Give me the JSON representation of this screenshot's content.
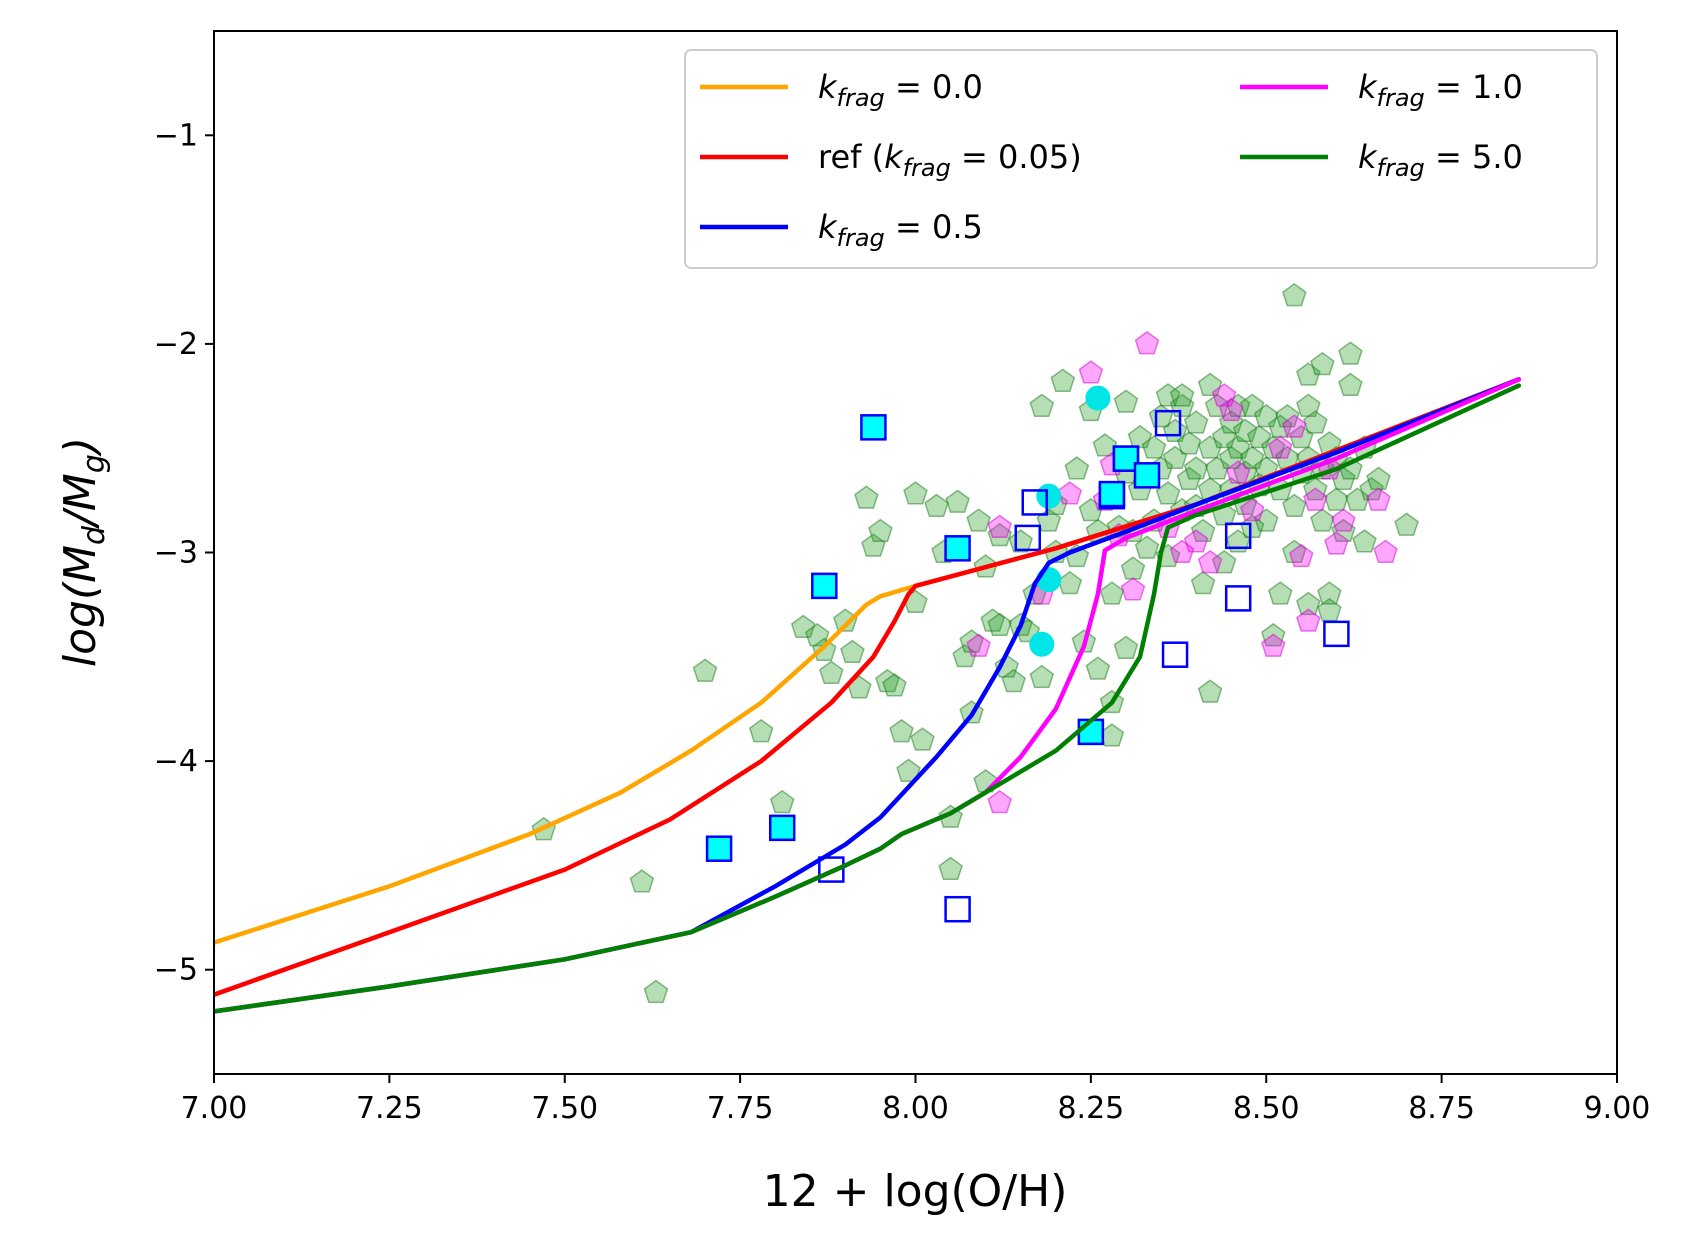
{
  "chart_data": {
    "type": "line",
    "title": "",
    "xlabel": "12 + log(O/H)",
    "ylabel": "log(M_d/M_g)",
    "ylabel_parts": {
      "pre": "log(M",
      "sub1": "d",
      "mid": "/M",
      "sub2": "g",
      "post": ")"
    },
    "xlim": [
      7.0,
      9.0
    ],
    "ylim": [
      -5.5,
      -0.5
    ],
    "xticks": [
      7.0,
      7.25,
      7.5,
      7.75,
      8.0,
      8.25,
      8.5,
      8.75,
      9.0
    ],
    "xtick_labels": [
      "7.00",
      "7.25",
      "7.50",
      "7.75",
      "8.00",
      "8.25",
      "8.50",
      "8.75",
      "9.00"
    ],
    "yticks": [
      -5,
      -4,
      -3,
      -2,
      -1
    ],
    "ytick_labels": [
      "−5",
      "−4",
      "−3",
      "−2",
      "−1"
    ],
    "grid": false,
    "legend_position": "top-right",
    "series": [
      {
        "name": "kfrag = 0.0",
        "legend_label": {
          "pre": "k",
          "sub": "frag",
          "post": " =  0.0"
        },
        "color": "#ffa500",
        "x": [
          7.0,
          7.25,
          7.45,
          7.58,
          7.68,
          7.78,
          7.87,
          7.93,
          7.95,
          8.0,
          8.2,
          8.4,
          8.6,
          8.86
        ],
        "y": [
          -4.87,
          -4.6,
          -4.35,
          -4.15,
          -3.95,
          -3.72,
          -3.45,
          -3.25,
          -3.21,
          -3.16,
          -2.98,
          -2.77,
          -2.51,
          -2.17
        ]
      },
      {
        "name": "ref (kfrag = 0.05)",
        "legend_label": {
          "pre": "ref (k",
          "sub": "frag",
          "post": " =  0.05)"
        },
        "color": "#ff0000",
        "x": [
          7.0,
          7.25,
          7.5,
          7.65,
          7.78,
          7.88,
          7.94,
          7.97,
          7.99,
          8.0,
          8.2,
          8.4,
          8.6,
          8.86
        ],
        "y": [
          -5.12,
          -4.82,
          -4.52,
          -4.28,
          -4.0,
          -3.72,
          -3.5,
          -3.33,
          -3.2,
          -3.16,
          -2.98,
          -2.77,
          -2.51,
          -2.17
        ]
      },
      {
        "name": "kfrag = 0.5",
        "legend_label": {
          "pre": "k",
          "sub": "frag",
          "post": " =  0.5"
        },
        "color": "#0000ff",
        "x": [
          7.0,
          7.25,
          7.5,
          7.68,
          7.8,
          7.9,
          7.95,
          8.03,
          8.08,
          8.12,
          8.15,
          8.17,
          8.19,
          8.22,
          8.3,
          8.4,
          8.6,
          8.86
        ],
        "y": [
          -5.2,
          -5.08,
          -4.95,
          -4.82,
          -4.6,
          -4.4,
          -4.27,
          -3.98,
          -3.78,
          -3.55,
          -3.35,
          -3.15,
          -3.05,
          -3.0,
          -2.9,
          -2.77,
          -2.52,
          -2.17
        ]
      },
      {
        "name": "kfrag = 1.0",
        "legend_label": {
          "pre": "k",
          "sub": "frag",
          "post": " =  1.0"
        },
        "color": "#ff00ff",
        "x": [
          7.0,
          7.25,
          7.5,
          7.68,
          7.8,
          7.9,
          7.95,
          7.98,
          8.05,
          8.1,
          8.15,
          8.2,
          8.24,
          8.26,
          8.27,
          8.3,
          8.4,
          8.6,
          8.86
        ],
        "y": [
          -5.2,
          -5.08,
          -4.95,
          -4.82,
          -4.65,
          -4.5,
          -4.42,
          -4.35,
          -4.25,
          -4.15,
          -3.98,
          -3.75,
          -3.45,
          -3.2,
          -2.99,
          -2.93,
          -2.8,
          -2.55,
          -2.17
        ]
      },
      {
        "name": "kfrag = 5.0",
        "legend_label": {
          "pre": "k",
          "sub": "frag",
          "post": " =  5.0"
        },
        "color": "#008000",
        "x": [
          7.0,
          7.25,
          7.5,
          7.68,
          7.8,
          7.9,
          7.95,
          7.98,
          8.05,
          8.1,
          8.2,
          8.28,
          8.32,
          8.34,
          8.35,
          8.36,
          8.4,
          8.6,
          8.86
        ],
        "y": [
          -5.2,
          -5.08,
          -4.95,
          -4.82,
          -4.65,
          -4.5,
          -4.42,
          -4.35,
          -4.25,
          -4.15,
          -3.95,
          -3.72,
          -3.5,
          -3.2,
          -3.0,
          -2.88,
          -2.82,
          -2.6,
          -2.2
        ]
      }
    ],
    "scatter_sets": [
      {
        "name": "green-pentagons",
        "marker": "pentagon",
        "fill": "#2ca02c",
        "stroke": "#1a7a1a",
        "opacity": 0.35,
        "points": [
          [
            7.47,
            -4.33
          ],
          [
            7.63,
            -5.11
          ],
          [
            7.61,
            -4.58
          ],
          [
            7.7,
            -3.57
          ],
          [
            7.78,
            -3.86
          ],
          [
            7.81,
            -4.2
          ],
          [
            7.84,
            -3.36
          ],
          [
            7.86,
            -3.4
          ],
          [
            7.87,
            -3.47
          ],
          [
            7.88,
            -3.58
          ],
          [
            7.9,
            -3.33
          ],
          [
            7.91,
            -3.48
          ],
          [
            7.92,
            -3.65
          ],
          [
            7.93,
            -2.74
          ],
          [
            7.94,
            -2.97
          ],
          [
            7.95,
            -2.9
          ],
          [
            7.96,
            -3.62
          ],
          [
            7.97,
            -3.64
          ],
          [
            7.98,
            -3.86
          ],
          [
            7.99,
            -4.05
          ],
          [
            8.0,
            -2.72
          ],
          [
            8.0,
            -3.24
          ],
          [
            8.01,
            -3.9
          ],
          [
            8.03,
            -2.78
          ],
          [
            8.04,
            -3.0
          ],
          [
            8.05,
            -4.27
          ],
          [
            8.05,
            -4.52
          ],
          [
            8.06,
            -2.76
          ],
          [
            8.07,
            -3.5
          ],
          [
            8.08,
            -3.43
          ],
          [
            8.08,
            -3.77
          ],
          [
            8.09,
            -2.85
          ],
          [
            8.1,
            -3.07
          ],
          [
            8.1,
            -4.1
          ],
          [
            8.11,
            -3.33
          ],
          [
            8.12,
            -3.35
          ],
          [
            8.12,
            -2.92
          ],
          [
            8.13,
            -3.55
          ],
          [
            8.14,
            -3.62
          ],
          [
            8.15,
            -3.35
          ],
          [
            8.15,
            -2.95
          ],
          [
            8.16,
            -3.38
          ],
          [
            8.17,
            -3.2
          ],
          [
            8.18,
            -3.6
          ],
          [
            8.18,
            -2.3
          ],
          [
            8.19,
            -2.85
          ],
          [
            8.2,
            -2.77
          ],
          [
            8.2,
            -3.0
          ],
          [
            8.21,
            -2.18
          ],
          [
            8.22,
            -3.15
          ],
          [
            8.23,
            -3.02
          ],
          [
            8.23,
            -2.6
          ],
          [
            8.24,
            -3.43
          ],
          [
            8.25,
            -2.32
          ],
          [
            8.25,
            -2.8
          ],
          [
            8.26,
            -2.9
          ],
          [
            8.26,
            -3.56
          ],
          [
            8.27,
            -2.49
          ],
          [
            8.28,
            -2.72
          ],
          [
            8.28,
            -3.2
          ],
          [
            8.28,
            -3.72
          ],
          [
            8.28,
            -3.88
          ],
          [
            8.29,
            -2.88
          ],
          [
            8.3,
            -2.28
          ],
          [
            8.3,
            -2.62
          ],
          [
            8.3,
            -3.46
          ],
          [
            8.31,
            -2.9
          ],
          [
            8.31,
            -3.08
          ],
          [
            8.32,
            -2.45
          ],
          [
            8.32,
            -2.7
          ],
          [
            8.33,
            -2.98
          ],
          [
            8.34,
            -2.5
          ],
          [
            8.34,
            -2.85
          ],
          [
            8.35,
            -2.35
          ],
          [
            8.35,
            -2.6
          ],
          [
            8.36,
            -2.25
          ],
          [
            8.36,
            -2.72
          ],
          [
            8.36,
            -3.02
          ],
          [
            8.37,
            -2.42
          ],
          [
            8.37,
            -2.55
          ],
          [
            8.38,
            -2.8
          ],
          [
            8.38,
            -2.3
          ],
          [
            8.39,
            -2.65
          ],
          [
            8.39,
            -2.48
          ],
          [
            8.4,
            -2.38
          ],
          [
            8.4,
            -2.6
          ],
          [
            8.4,
            -2.78
          ],
          [
            8.41,
            -2.9
          ],
          [
            8.41,
            -3.15
          ],
          [
            8.42,
            -2.5
          ],
          [
            8.42,
            -2.7
          ],
          [
            8.42,
            -3.67
          ],
          [
            8.43,
            -2.3
          ],
          [
            8.43,
            -2.6
          ],
          [
            8.44,
            -2.45
          ],
          [
            8.44,
            -2.82
          ],
          [
            8.44,
            -3.05
          ],
          [
            8.45,
            -2.38
          ],
          [
            8.45,
            -2.55
          ],
          [
            8.45,
            -2.7
          ],
          [
            8.46,
            -2.3
          ],
          [
            8.46,
            -2.5
          ],
          [
            8.46,
            -2.95
          ],
          [
            8.47,
            -2.42
          ],
          [
            8.47,
            -2.62
          ],
          [
            8.47,
            -2.77
          ],
          [
            8.48,
            -2.3
          ],
          [
            8.48,
            -2.55
          ],
          [
            8.48,
            -2.88
          ],
          [
            8.49,
            -2.45
          ],
          [
            8.49,
            -2.68
          ],
          [
            8.5,
            -2.35
          ],
          [
            8.5,
            -2.6
          ],
          [
            8.5,
            -2.85
          ],
          [
            8.51,
            -3.4
          ],
          [
            8.51,
            -2.5
          ],
          [
            8.52,
            -2.4
          ],
          [
            8.52,
            -2.7
          ],
          [
            8.52,
            -3.2
          ],
          [
            8.53,
            -2.55
          ],
          [
            8.53,
            -2.35
          ],
          [
            8.54,
            -1.77
          ],
          [
            8.54,
            -2.78
          ],
          [
            8.54,
            -3.0
          ],
          [
            8.55,
            -2.45
          ],
          [
            8.55,
            -2.62
          ],
          [
            8.56,
            -2.3
          ],
          [
            8.56,
            -2.55
          ],
          [
            8.56,
            -3.25
          ],
          [
            8.57,
            -2.7
          ],
          [
            8.57,
            -2.38
          ],
          [
            8.58,
            -2.6
          ],
          [
            8.58,
            -2.85
          ],
          [
            8.59,
            -2.48
          ],
          [
            8.59,
            -3.2
          ],
          [
            8.59,
            -3.28
          ],
          [
            8.6,
            -2.55
          ],
          [
            8.6,
            -2.75
          ],
          [
            8.61,
            -2.65
          ],
          [
            8.61,
            -2.9
          ],
          [
            8.62,
            -2.2
          ],
          [
            8.62,
            -2.6
          ],
          [
            8.63,
            -2.75
          ],
          [
            8.64,
            -2.5
          ],
          [
            8.64,
            -2.95
          ],
          [
            8.65,
            -2.7
          ],
          [
            8.66,
            -2.65
          ],
          [
            8.7,
            -2.87
          ],
          [
            8.56,
            -2.15
          ],
          [
            8.58,
            -2.1
          ],
          [
            8.62,
            -2.05
          ],
          [
            8.42,
            -2.2
          ],
          [
            8.38,
            -2.25
          ]
        ]
      },
      {
        "name": "magenta-pentagons",
        "marker": "pentagon",
        "fill": "#ff00ff",
        "stroke": "#d000d0",
        "opacity": 0.35,
        "points": [
          [
            8.09,
            -3.45
          ],
          [
            8.12,
            -4.2
          ],
          [
            8.12,
            -2.88
          ],
          [
            8.18,
            -3.2
          ],
          [
            8.22,
            -2.72
          ],
          [
            8.25,
            -2.14
          ],
          [
            8.27,
            -2.75
          ],
          [
            8.28,
            -2.58
          ],
          [
            8.29,
            -2.92
          ],
          [
            8.31,
            -3.18
          ],
          [
            8.33,
            -2.0
          ],
          [
            8.38,
            -3.0
          ],
          [
            8.42,
            -3.05
          ],
          [
            8.44,
            -2.25
          ],
          [
            8.45,
            -2.32
          ],
          [
            8.46,
            -2.62
          ],
          [
            8.48,
            -2.8
          ],
          [
            8.51,
            -3.45
          ],
          [
            8.52,
            -2.5
          ],
          [
            8.54,
            -2.4
          ],
          [
            8.55,
            -3.02
          ],
          [
            8.56,
            -3.33
          ],
          [
            8.57,
            -2.75
          ],
          [
            8.59,
            -2.6
          ],
          [
            8.6,
            -2.96
          ],
          [
            8.61,
            -2.85
          ],
          [
            8.66,
            -2.75
          ],
          [
            8.67,
            -3.0
          ],
          [
            8.36,
            -2.88
          ],
          [
            8.4,
            -2.95
          ]
        ]
      },
      {
        "name": "cyan-circles",
        "marker": "circle",
        "fill": "#00e5e5",
        "stroke": "#00e5e5",
        "opacity": 1,
        "points": [
          [
            8.26,
            -2.26
          ],
          [
            8.19,
            -2.73
          ],
          [
            8.18,
            -3.44
          ],
          [
            8.19,
            -3.13
          ]
        ]
      },
      {
        "name": "blue-open-squares",
        "marker": "square-open",
        "fill": "none",
        "stroke": "#0000ff",
        "opacity": 1,
        "points": [
          [
            7.88,
            -4.52
          ],
          [
            8.06,
            -4.71
          ],
          [
            8.16,
            -2.93
          ],
          [
            8.17,
            -2.76
          ],
          [
            8.36,
            -2.38
          ],
          [
            8.37,
            -3.49
          ],
          [
            8.46,
            -2.92
          ],
          [
            8.46,
            -3.22
          ],
          [
            8.6,
            -3.39
          ],
          [
            8.28,
            -2.73
          ],
          [
            8.3,
            -2.55
          ]
        ]
      },
      {
        "name": "cyan-filled-squares",
        "marker": "square-filled",
        "fill": "#00ffff",
        "stroke": "#0000ff",
        "opacity": 1,
        "points": [
          [
            7.94,
            -2.4
          ],
          [
            7.87,
            -3.16
          ],
          [
            8.06,
            -2.98
          ],
          [
            8.3,
            -2.55
          ],
          [
            8.33,
            -2.63
          ],
          [
            8.25,
            -3.86
          ],
          [
            7.72,
            -4.42
          ],
          [
            7.81,
            -4.32
          ],
          [
            8.28,
            -2.72
          ]
        ]
      }
    ]
  }
}
